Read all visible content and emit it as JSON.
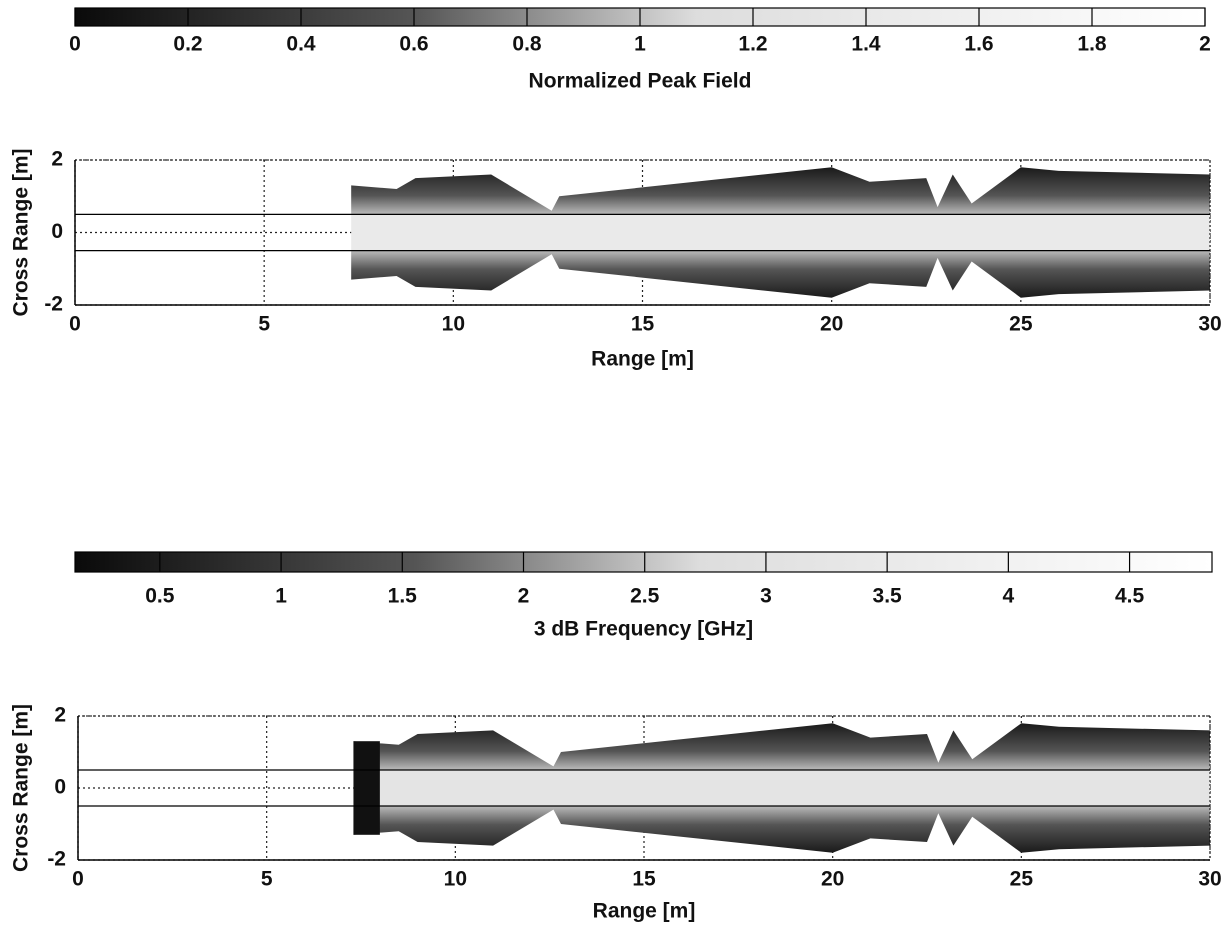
{
  "chart_data": [
    {
      "type": "heatmap",
      "colorbar": {
        "label": "Normalized Peak Field",
        "lim": [
          0,
          2
        ],
        "ticks": [
          0,
          0.2,
          0.4,
          0.6,
          0.8,
          1,
          1.2,
          1.4,
          1.6,
          1.8,
          2
        ]
      },
      "xlabel": "Range [m]",
      "ylabel": "Cross Range [m]",
      "xlim": [
        0,
        30
      ],
      "xticks": [
        0,
        5,
        10,
        15,
        20,
        25,
        30
      ],
      "ylim": [
        -2,
        2
      ],
      "yticks": [
        -2,
        0,
        2
      ],
      "grid": true,
      "hlines": [
        0.5,
        -0.5
      ]
    },
    {
      "type": "heatmap",
      "colorbar": {
        "label": "3 dB Frequency [GHz]",
        "lim": [
          0.15,
          4.84
        ],
        "ticks": [
          0.5,
          1,
          1.5,
          2,
          2.5,
          3,
          3.5,
          4,
          4.5
        ]
      },
      "xlabel": "Range [m]",
      "ylabel": "Cross Range [m]",
      "xlim": [
        0,
        30
      ],
      "xticks": [
        0,
        5,
        10,
        15,
        20,
        25,
        30
      ],
      "ylim": [
        -2,
        2
      ],
      "yticks": [
        -2,
        0,
        2
      ],
      "grid": true,
      "hlines": [
        0.5,
        -0.5
      ]
    }
  ]
}
